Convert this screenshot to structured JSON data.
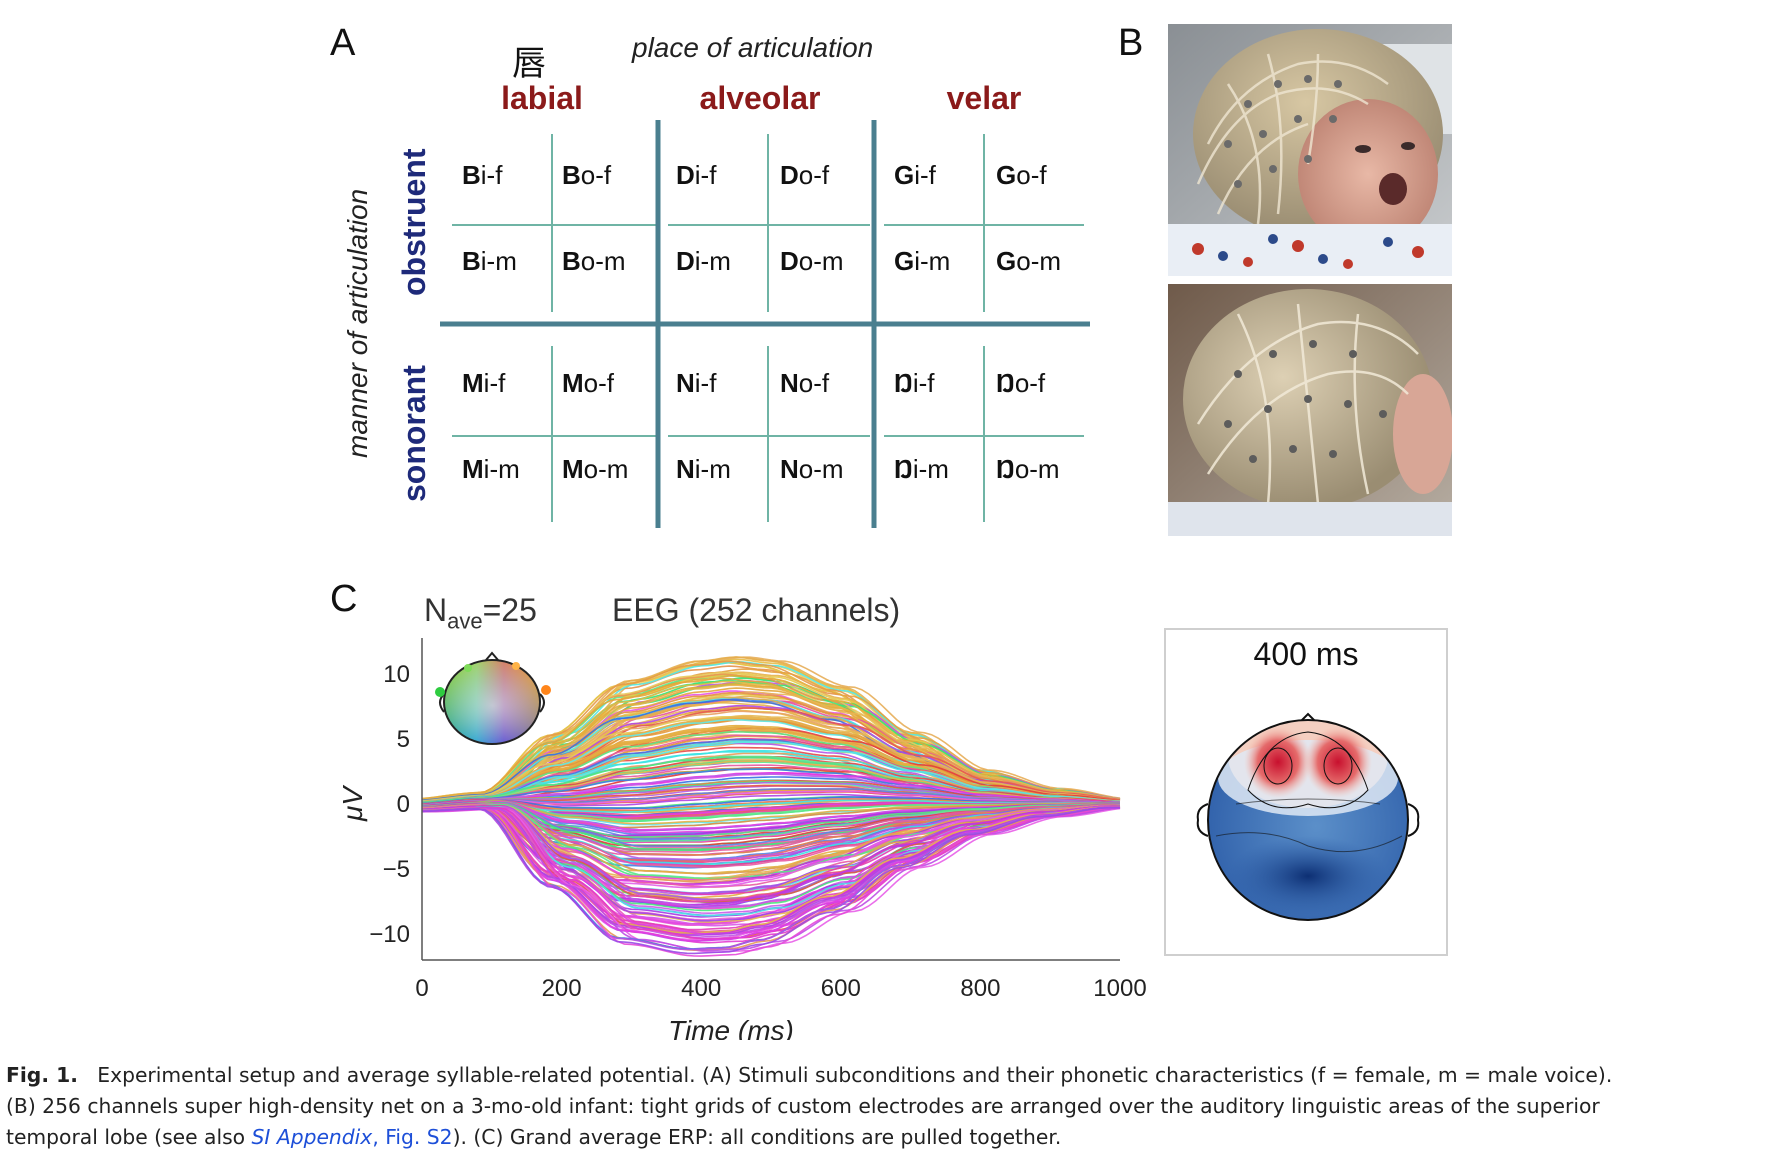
{
  "panel_a": {
    "letter": "A",
    "annotation_char": "唇",
    "place_title": "place of articulation",
    "manner_title": "manner  of articulation",
    "columns": [
      "labial",
      "alveolar",
      "velar"
    ],
    "rows": [
      "obstruent",
      "sonorant"
    ],
    "cells": [
      [
        {
          "b": "B",
          "r": "i-f"
        },
        {
          "b": "B",
          "r": "o-f"
        },
        {
          "b": "D",
          "r": "i-f"
        },
        {
          "b": "D",
          "r": "o-f"
        },
        {
          "b": "G",
          "r": "i-f"
        },
        {
          "b": "G",
          "r": "o-f"
        }
      ],
      [
        {
          "b": "B",
          "r": "i-m"
        },
        {
          "b": "B",
          "r": "o-m"
        },
        {
          "b": "D",
          "r": "i-m"
        },
        {
          "b": "D",
          "r": "o-m"
        },
        {
          "b": "G",
          "r": "i-m"
        },
        {
          "b": "G",
          "r": "o-m"
        }
      ],
      [
        {
          "b": "M",
          "r": "i-f"
        },
        {
          "b": "M",
          "r": "o-f"
        },
        {
          "b": "N",
          "r": "i-f"
        },
        {
          "b": "N",
          "r": "o-f"
        },
        {
          "b": "Ŋ",
          "r": "i-f"
        },
        {
          "b": "Ŋ",
          "r": "o-f"
        }
      ],
      [
        {
          "b": "M",
          "r": "i-m"
        },
        {
          "b": "M",
          "r": "o-m"
        },
        {
          "b": "N",
          "r": "i-m"
        },
        {
          "b": "N",
          "r": "o-m"
        },
        {
          "b": "Ŋ",
          "r": "i-m"
        },
        {
          "b": "Ŋ",
          "r": "o-m"
        }
      ]
    ],
    "grid_color": "#5aa89a",
    "major_grid_color": "#4a7f8f"
  },
  "panel_b": {
    "letter": "B"
  },
  "panel_c": {
    "letter": "C",
    "nave_main": "N",
    "nave_sub": "ave",
    "nave_value": "=25",
    "eeg_title": "EEG (252 channels)",
    "topo_title": "400 ms"
  },
  "chart_data": {
    "type": "line",
    "xlabel": "Time (ms)",
    "ylabel": "μV",
    "xlim": [
      0,
      1000
    ],
    "ylim": [
      -12,
      12
    ],
    "xticks": [
      0,
      200,
      400,
      600,
      800,
      1000
    ],
    "yticks": [
      10,
      5,
      0,
      -5,
      -10
    ],
    "ytick_labels": [
      "10",
      "5",
      "0",
      "−5",
      "−10"
    ],
    "grid": false,
    "channel_count": 252,
    "envelope": {
      "x": [
        0,
        100,
        200,
        300,
        400,
        450,
        500,
        600,
        700,
        800,
        900,
        1000
      ],
      "upper": [
        0.4,
        0.9,
        5.5,
        9.5,
        11.0,
        11.3,
        11.0,
        9.0,
        5.5,
        2.6,
        1.2,
        0.4
      ],
      "lower": [
        -0.6,
        -0.4,
        -6.5,
        -10.8,
        -11.7,
        -11.6,
        -11.0,
        -8.5,
        -5.0,
        -2.4,
        -1.0,
        -0.3
      ]
    },
    "peak_ms": 430
  },
  "caption": {
    "fig_label": "Fig. 1.",
    "line1": "Experimental setup and average syllable-related potential. (A) Stimuli subconditions and their phonetic characteristics (f = female, m = male voice).",
    "line2": "(B) 256 channels super high-density net on a 3-mo-old infant: tight grids of custom electrodes are arranged over the auditory linguistic areas of the superior",
    "line3_pre": "temporal lobe (see also ",
    "line3_link1": "SI Appendix",
    "line3_comma": ", ",
    "line3_link2": "Fig. S2",
    "line3_post": "). (C) Grand average ERP: all conditions are pulled together."
  }
}
